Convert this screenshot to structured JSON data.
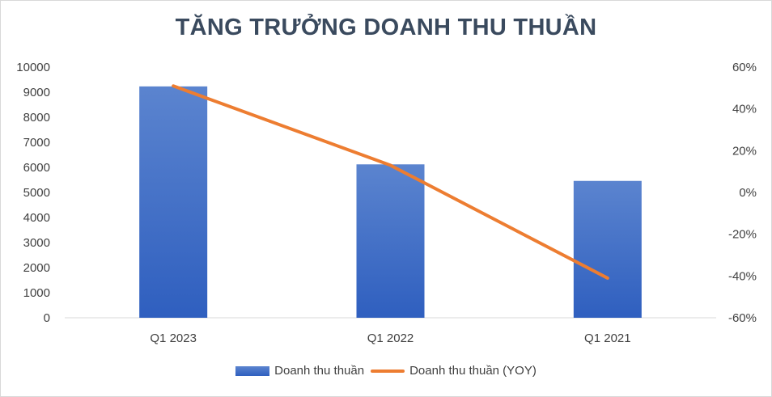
{
  "chart_data": {
    "type": "bar",
    "title": "TĂNG TRƯỞNG DOANH THU THUẦN",
    "categories": [
      "Q1 2023",
      "Q1 2022",
      "Q1 2021"
    ],
    "series": [
      {
        "name": "Doanh thu thuần",
        "type": "bar",
        "axis": "left",
        "values": [
          9230,
          6120,
          5460
        ]
      },
      {
        "name": "Doanh thu thuần (YOY)",
        "type": "line",
        "axis": "right",
        "values": [
          51,
          13,
          -41
        ]
      }
    ],
    "y_left": {
      "range": [
        0,
        10000
      ],
      "ticks": [
        "10000",
        "9000",
        "8000",
        "7000",
        "6000",
        "5000",
        "4000",
        "3000",
        "2000",
        "1000",
        "0"
      ]
    },
    "y_right": {
      "range": [
        -60,
        60
      ],
      "ticks": [
        "60%",
        "40%",
        "20%",
        "0%",
        "-20%",
        "-40%",
        "-60%"
      ]
    },
    "grid": false,
    "legend": "bottom",
    "colors": {
      "bar_top": "#5b84cf",
      "bar_bottom": "#2f5fbf",
      "line": "#ed7d31",
      "axis": "#d9d9d9"
    }
  }
}
